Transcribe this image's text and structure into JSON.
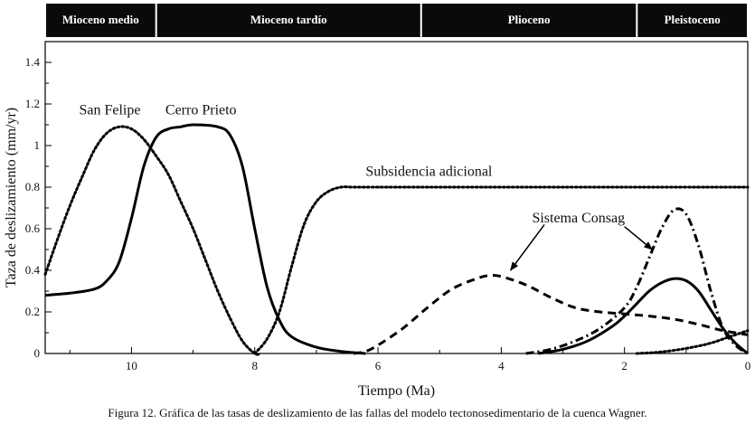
{
  "colors": {
    "band": "#0a0a0a",
    "line": "#000000",
    "background": "#ffffff"
  },
  "epochs": [
    {
      "label": "Mioceno medio",
      "from": 11.4,
      "to": 9.6
    },
    {
      "label": "Mioceno tardío",
      "from": 9.6,
      "to": 5.3
    },
    {
      "label": "Plioceno",
      "from": 5.3,
      "to": 1.8
    },
    {
      "label": "Pleistoceno",
      "from": 1.8,
      "to": 0
    }
  ],
  "caption": "Figura 12. Gráfica de las tasas de deslizamiento de las fallas del modelo tectonosedimentario de la cuenca Wagner.",
  "chart_data": {
    "type": "line",
    "xlabel": "Tiempo (Ma)",
    "ylabel": "Taza de deslizamiento (mm/yr)",
    "xlim": [
      11.4,
      0
    ],
    "ylim": [
      0,
      1.5
    ],
    "xticks": [
      10,
      8,
      6,
      4,
      2,
      0
    ],
    "yticks": [
      0,
      0.2,
      0.4,
      0.6,
      0.8,
      1,
      1.2,
      1.4
    ],
    "grid": false,
    "legend": "none",
    "series": [
      {
        "name": "San Felipe",
        "style": "dotted",
        "x": [
          11.4,
          11.2,
          11.0,
          10.8,
          10.6,
          10.4,
          10.2,
          10.0,
          9.8,
          9.6,
          9.4,
          9.2,
          9.0,
          8.8,
          8.6,
          8.4,
          8.2,
          8.0,
          7.9
        ],
        "y": [
          0.38,
          0.55,
          0.71,
          0.85,
          0.98,
          1.06,
          1.09,
          1.08,
          1.03,
          0.95,
          0.86,
          0.73,
          0.6,
          0.45,
          0.3,
          0.17,
          0.06,
          0.0,
          0.0
        ]
      },
      {
        "name": "Cerro Prieto",
        "style": "solid",
        "x": [
          11.4,
          11.0,
          10.6,
          10.4,
          10.2,
          10.0,
          9.8,
          9.6,
          9.4,
          9.2,
          9.0,
          8.6,
          8.4,
          8.2,
          8.0,
          7.8,
          7.6,
          7.4,
          7.0,
          6.6,
          6.2
        ],
        "y": [
          0.28,
          0.29,
          0.31,
          0.35,
          0.44,
          0.65,
          0.9,
          1.04,
          1.08,
          1.09,
          1.1,
          1.09,
          1.05,
          0.9,
          0.6,
          0.32,
          0.16,
          0.08,
          0.03,
          0.01,
          0.0
        ]
      },
      {
        "name": "Subsidencia adicional",
        "style": "dotted",
        "x": [
          8.0,
          7.8,
          7.6,
          7.4,
          7.2,
          7.0,
          6.8,
          6.6,
          6.4,
          6.2,
          5.0,
          3.0,
          1.0,
          0.0
        ],
        "y": [
          0.0,
          0.07,
          0.2,
          0.42,
          0.62,
          0.73,
          0.78,
          0.8,
          0.8,
          0.8,
          0.8,
          0.8,
          0.8,
          0.8
        ]
      },
      {
        "name": "Sistema Consag",
        "style": "dashed",
        "x": [
          6.4,
          6.2,
          6.0,
          5.6,
          5.2,
          4.8,
          4.4,
          4.2,
          4.0,
          3.6,
          3.2,
          2.8,
          2.4,
          2.0,
          1.6,
          1.2,
          0.8,
          0.4,
          0.0
        ],
        "y": [
          0.0,
          0.01,
          0.04,
          0.12,
          0.22,
          0.31,
          0.36,
          0.375,
          0.37,
          0.33,
          0.27,
          0.22,
          0.2,
          0.19,
          0.18,
          0.165,
          0.14,
          0.11,
          0.09
        ]
      },
      {
        "name": "Sistema Consag",
        "style": "dashdot",
        "x": [
          3.6,
          3.2,
          2.8,
          2.4,
          2.0,
          1.8,
          1.6,
          1.4,
          1.2,
          1.0,
          0.8,
          0.6,
          0.4,
          0.2,
          0.0
        ],
        "y": [
          0.0,
          0.02,
          0.06,
          0.12,
          0.22,
          0.32,
          0.46,
          0.6,
          0.69,
          0.67,
          0.52,
          0.3,
          0.12,
          0.04,
          0.0
        ]
      },
      {
        "name": "",
        "style": "solid",
        "x": [
          3.4,
          3.0,
          2.6,
          2.2,
          2.0,
          1.8,
          1.6,
          1.4,
          1.2,
          1.0,
          0.8,
          0.6,
          0.4,
          0.2,
          0.0
        ],
        "y": [
          0.0,
          0.02,
          0.06,
          0.13,
          0.18,
          0.24,
          0.3,
          0.34,
          0.36,
          0.35,
          0.3,
          0.21,
          0.12,
          0.05,
          0.0
        ]
      },
      {
        "name": "",
        "style": "dotted",
        "x": [
          1.8,
          1.5,
          1.2,
          0.9,
          0.6,
          0.3,
          0.0
        ],
        "y": [
          0.0,
          0.005,
          0.015,
          0.03,
          0.05,
          0.08,
          0.11
        ]
      }
    ],
    "annotations": [
      {
        "text": "San Felipe",
        "x": 10.85,
        "y": 1.15
      },
      {
        "text": "Cerro Prieto",
        "x": 9.45,
        "y": 1.15
      },
      {
        "text": "Subsidencia adicional",
        "x": 6.2,
        "y": 0.855
      },
      {
        "text": "Sistema Consag",
        "x": 3.5,
        "y": 0.63
      }
    ],
    "arrows": [
      {
        "from": [
          3.3,
          0.62
        ],
        "to": [
          3.85,
          0.4
        ]
      },
      {
        "from": [
          2.0,
          0.61
        ],
        "to": [
          1.55,
          0.5
        ]
      }
    ]
  }
}
